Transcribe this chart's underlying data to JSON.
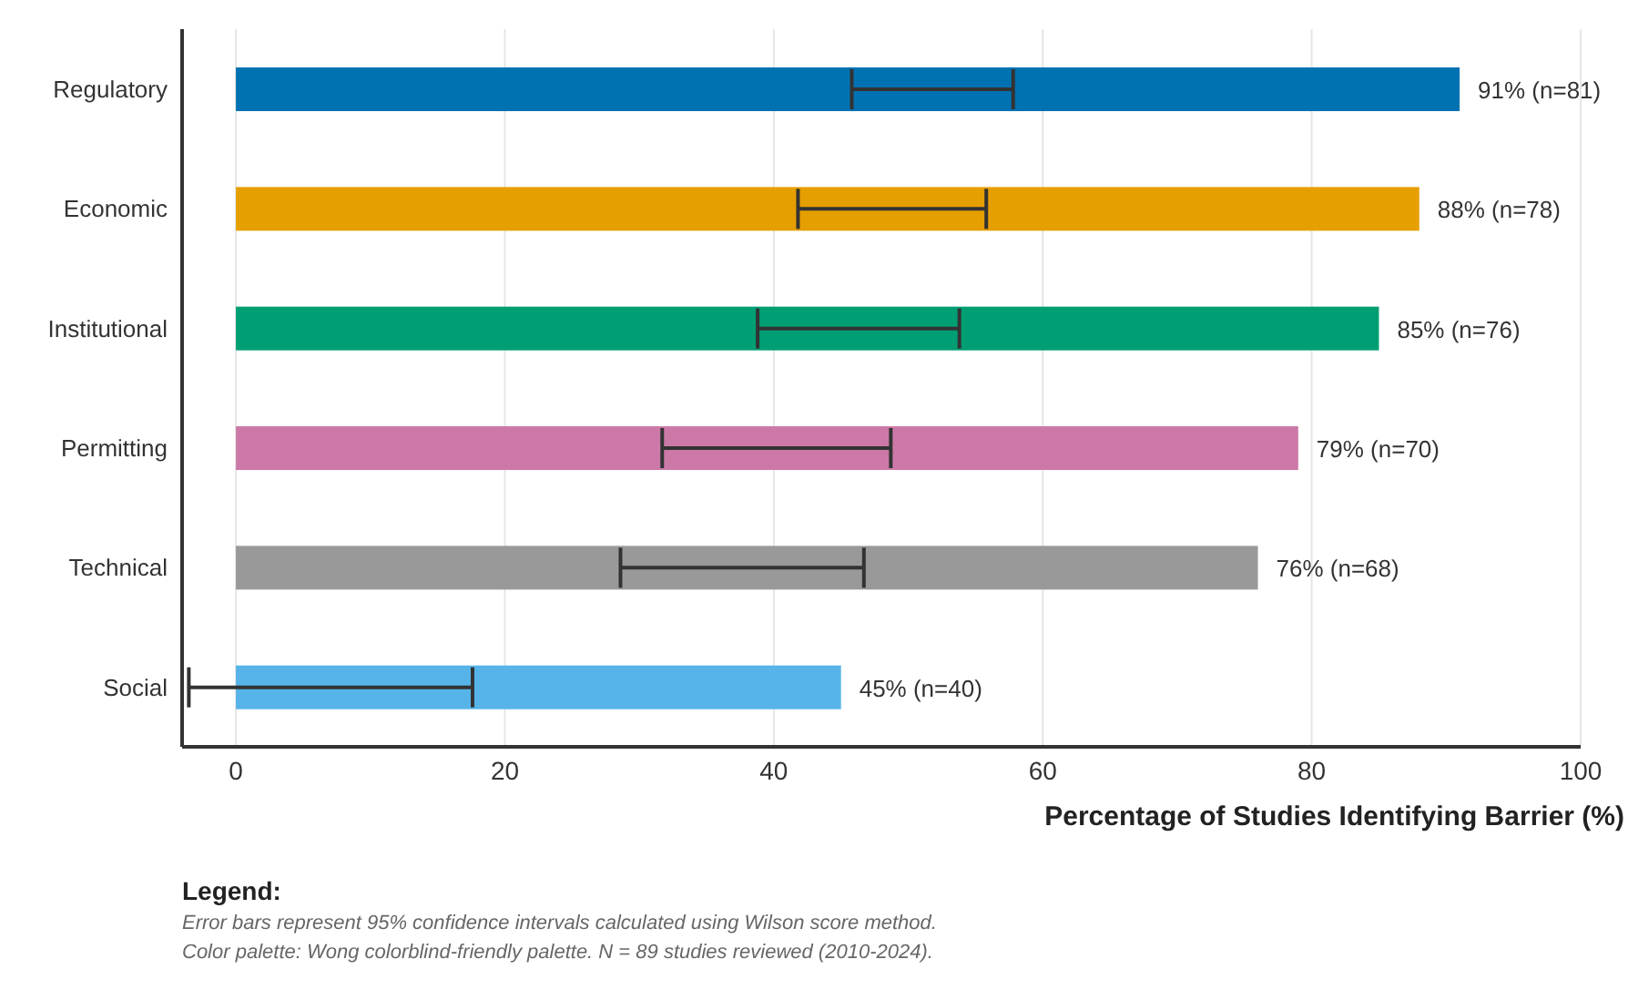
{
  "chart_data": {
    "type": "bar",
    "orientation": "horizontal",
    "xlabel": "Percentage of Studies Identifying Barrier (%)",
    "categories": [
      "Regulatory",
      "Economic",
      "Institutional",
      "Permitting",
      "Technical",
      "Social"
    ],
    "values": [
      91,
      88,
      85,
      79,
      76,
      45
    ],
    "colors": [
      "#0072b2",
      "#e69f00",
      "#009e73",
      "#cc79a7",
      "#999999",
      "#56b4e9"
    ],
    "errors": [
      [
        45.8,
        57.8
      ],
      [
        41.8,
        55.8
      ],
      [
        38.8,
        53.8
      ],
      [
        31.7,
        48.7
      ],
      [
        28.6,
        46.7
      ],
      [
        -3.5,
        17.6
      ]
    ],
    "value_labels": [
      "91% (n=81)",
      "88% (n=78)",
      "85% (n=76)",
      "79% (n=70)",
      "76% (n=68)",
      "45% (n=40)"
    ],
    "xlim": [
      -4,
      100
    ],
    "xticks": [
      0,
      20,
      40,
      60,
      80,
      100
    ],
    "grid": "x",
    "annotations": [
      "Legend:",
      "Error bars represent 95% confidence intervals calculated using Wilson score method.",
      "Color palette: Wong colorblind-friendly palette. N = 89 studies reviewed (2010-2024)."
    ]
  }
}
